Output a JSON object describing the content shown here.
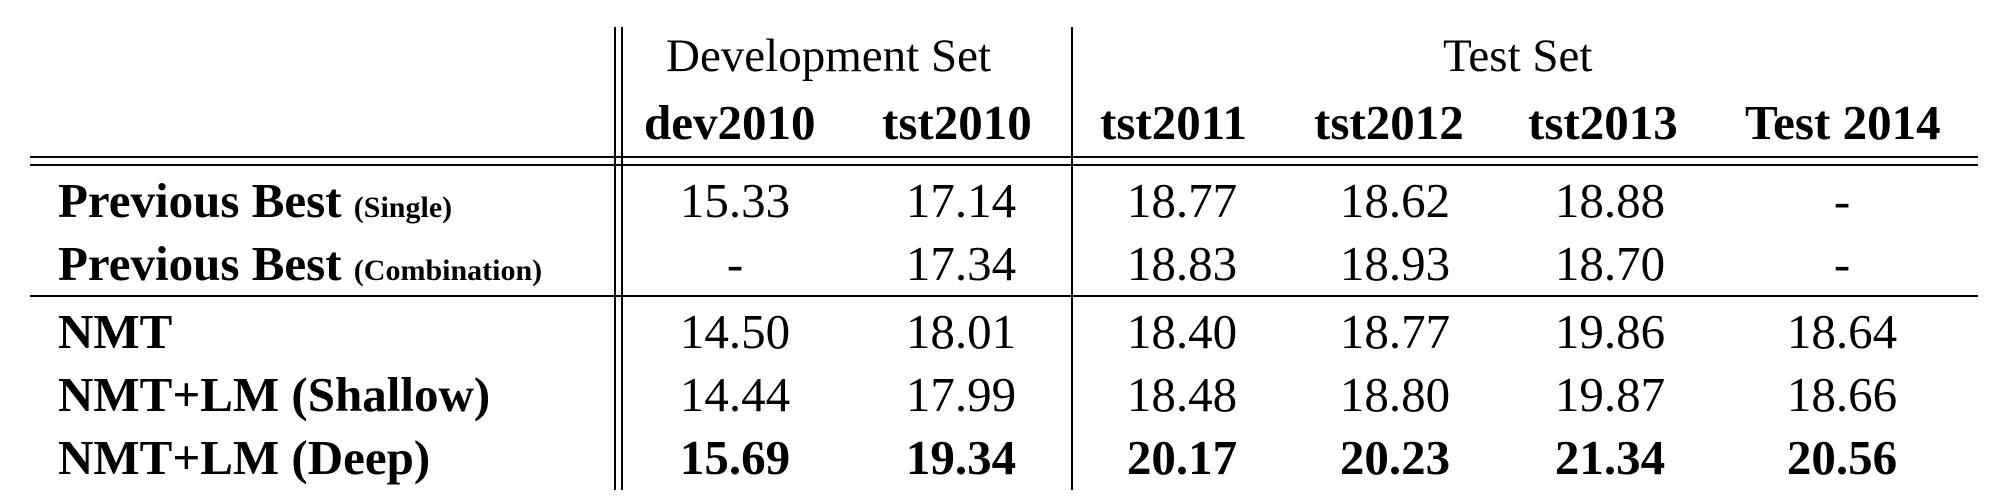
{
  "table": {
    "groups": {
      "dev": "Development Set",
      "test": "Test Set"
    },
    "columns": [
      "dev2010",
      "tst2010",
      "tst2011",
      "tst2012",
      "tst2013",
      "Test 2014"
    ],
    "rows": [
      {
        "label": "Previous Best",
        "suffix": "(Single)",
        "values": [
          "15.33",
          "17.14",
          "18.77",
          "18.62",
          "18.88",
          "-"
        ],
        "bold": false
      },
      {
        "label": "Previous Best",
        "suffix": "(Combination)",
        "values": [
          "-",
          "17.34",
          "18.83",
          "18.93",
          "18.70",
          "-"
        ],
        "bold": false
      },
      {
        "label": "NMT",
        "suffix": "",
        "values": [
          "14.50",
          "18.01",
          "18.40",
          "18.77",
          "19.86",
          "18.64"
        ],
        "bold": false
      },
      {
        "label": "NMT+LM (Shallow)",
        "suffix": "",
        "values": [
          "14.44",
          "17.99",
          "18.48",
          "18.80",
          "19.87",
          "18.66"
        ],
        "bold": false
      },
      {
        "label": "NMT+LM (Deep)",
        "suffix": "",
        "values": [
          "15.69",
          "19.34",
          "20.17",
          "20.23",
          "21.34",
          "20.56"
        ],
        "bold": true
      }
    ]
  }
}
